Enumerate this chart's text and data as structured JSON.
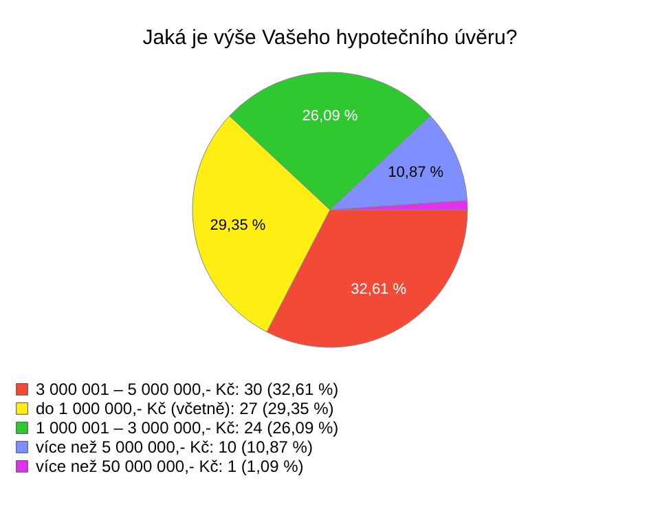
{
  "chart_data": {
    "type": "pie",
    "title": "Jaká je výše Vašeho hypotečního úvěru?",
    "categories": [
      "3 000 001 – 5 000 000,- Kč: 30 (32,61 %)",
      "do 1 000 000,- Kč (včetně): 27 (29,35 %)",
      "1 000 001 – 3 000 000,- Kč: 24 (26,09 %)",
      "více než 5 000 000,- Kč: 10 (10,87 %)",
      "více než 50 000 000,- Kč: 1 (1,09 %)"
    ],
    "values": [
      32.61,
      29.35,
      26.09,
      10.87,
      1.09
    ],
    "colors": [
      "#f24a36",
      "#ffee14",
      "#30c830",
      "#7f8fff",
      "#e030f0"
    ],
    "value_labels": [
      "32,61 %",
      "29,35 %",
      "26,09 %",
      "10,87 %",
      null
    ],
    "legend": "bottom left"
  }
}
